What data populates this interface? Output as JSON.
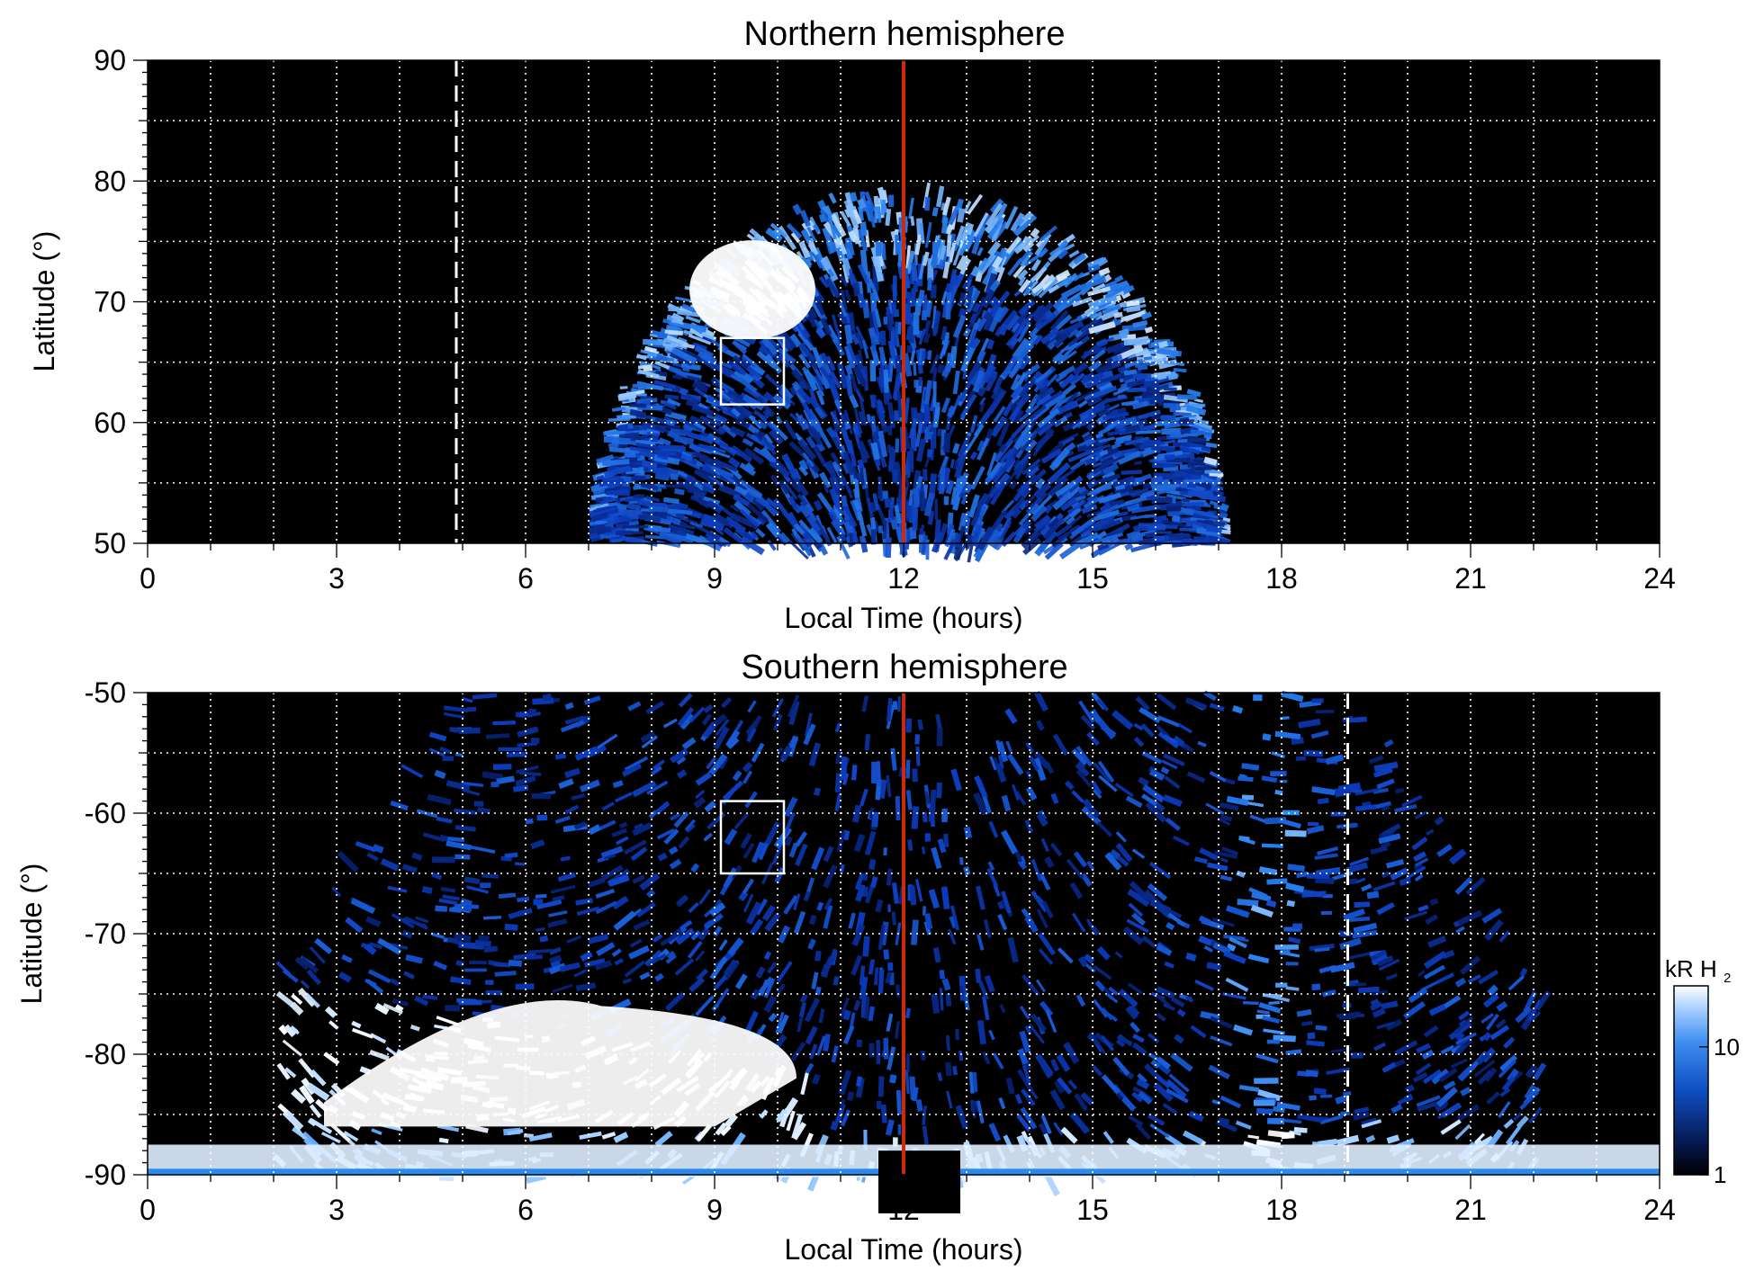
{
  "colors": {
    "background": "#000000",
    "emission_low": "#0a1a5c",
    "emission_mid": "#1f6fe0",
    "emission_high": "#ffffff",
    "noon_line": "#cc2a0c",
    "grid": "#ffffff",
    "region_box": "#ffffff"
  },
  "chart_data": [
    {
      "type": "heatmap",
      "title": "Northern hemisphere",
      "xlabel": "Local Time (hours)",
      "ylabel": "Latitude (°)",
      "xlim": [
        0,
        24
      ],
      "ylim": [
        50,
        90
      ],
      "xticks": [
        "0",
        "3",
        "6",
        "9",
        "12",
        "15",
        "18",
        "21",
        "24"
      ],
      "yticks": [
        "50",
        "60",
        "70",
        "80",
        "90"
      ],
      "xgrid_step": 1,
      "ygrid_step": 5,
      "grid": true,
      "noon_line_x": 12,
      "terminator_x": 4.9,
      "box": {
        "x0": 9.1,
        "x1": 10.1,
        "y0": 61.5,
        "y1": 67
      },
      "emission": {
        "lt_start": 7,
        "lt_end": 17.2,
        "lat_edge_at_ends": 50,
        "lat_edge_at_noon": 80,
        "bright_oval_center": [
          9.6,
          71
        ],
        "oval_band_lat": [
          65,
          78
        ]
      }
    },
    {
      "type": "heatmap",
      "title": "Southern hemisphere",
      "xlabel": "Local Time (hours)",
      "ylabel": "Latitude (°)",
      "xlim": [
        0,
        24
      ],
      "ylim": [
        -90,
        -50
      ],
      "xticks": [
        "0",
        "3",
        "6",
        "9",
        "12",
        "15",
        "18",
        "21",
        "24"
      ],
      "yticks": [
        "-90",
        "-80",
        "-70",
        "-60",
        "-50"
      ],
      "xgrid_step": 1,
      "ygrid_step": 5,
      "grid": true,
      "noon_line_x": 12,
      "terminator_x": 19.05,
      "box": {
        "x0": 9.1,
        "x1": 10.1,
        "y0": -65,
        "y1": -59
      },
      "emission": {
        "lt_start": 5.2,
        "lt_end": 19.1,
        "bright_region_lt": [
          2,
          10.5
        ],
        "bright_region_lat": [
          -90,
          -74
        ],
        "polar_floor_lat": -81
      }
    }
  ],
  "colorbar": {
    "label_main": "kR H",
    "label_sub": "2",
    "ticks": [
      {
        "label": "1",
        "value": 1
      },
      {
        "label": "10",
        "value": 10
      }
    ],
    "range": [
      1,
      30
    ],
    "scale": "log"
  }
}
